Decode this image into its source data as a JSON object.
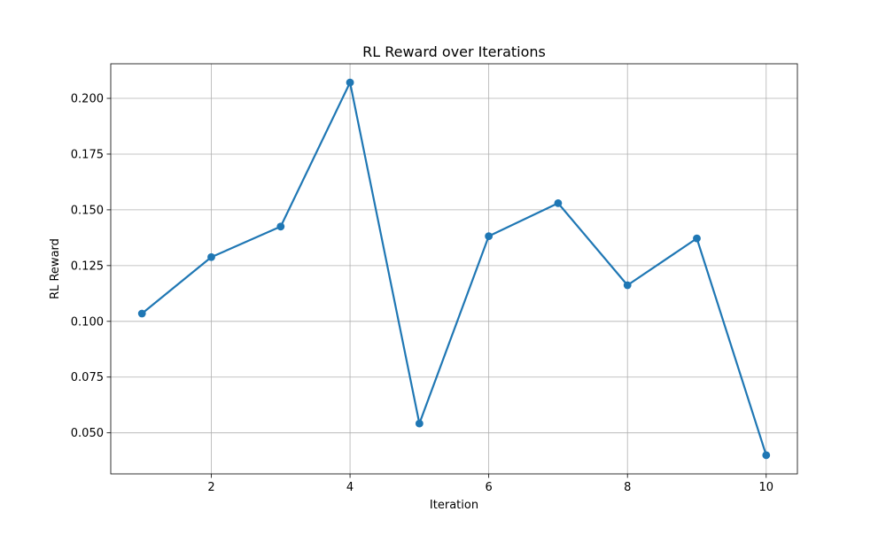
{
  "chart_data": {
    "type": "line",
    "title": "RL Reward over Iterations",
    "xlabel": "Iteration",
    "ylabel": "RL Reward",
    "x": [
      1,
      2,
      3,
      4,
      5,
      6,
      7,
      8,
      9,
      10
    ],
    "series": [
      {
        "values": [
          0.1035,
          0.1288,
          0.1425,
          0.2071,
          0.0542,
          0.1382,
          0.153,
          0.1162,
          0.1372,
          0.04
        ],
        "color": "#1f77b4",
        "marker": "circle"
      }
    ],
    "xlim": [
      0.55,
      10.45
    ],
    "ylim": [
      0.0316,
      0.2155
    ],
    "xticks": [
      2,
      4,
      6,
      8,
      10
    ],
    "xtick_labels": [
      "2",
      "4",
      "6",
      "8",
      "10"
    ],
    "yticks": [
      0.05,
      0.075,
      0.1,
      0.125,
      0.15,
      0.175,
      0.2
    ],
    "ytick_labels": [
      "0.050",
      "0.075",
      "0.100",
      "0.125",
      "0.150",
      "0.175",
      "0.200"
    ],
    "grid": true,
    "legend": false
  }
}
